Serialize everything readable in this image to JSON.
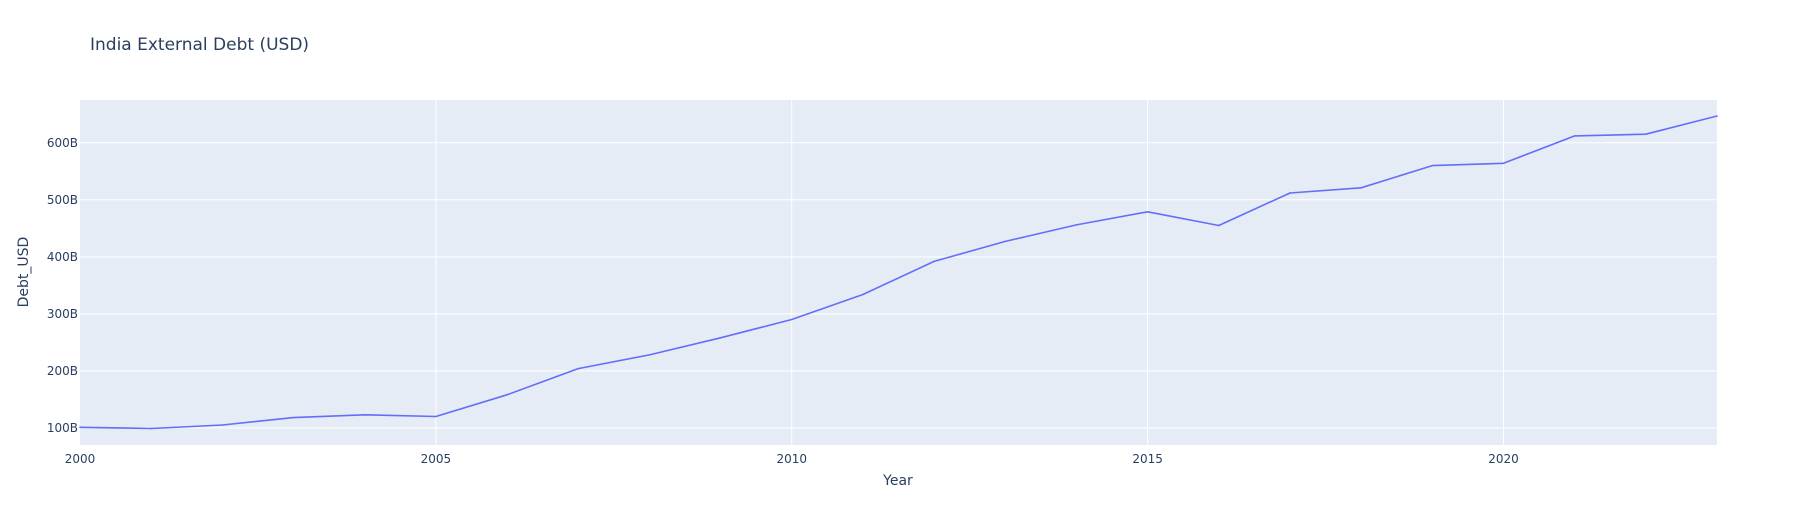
{
  "chart_data": {
    "type": "line",
    "title": "India External Debt (USD)",
    "xlabel": "Year",
    "ylabel": "Debt_USD",
    "xlim": [
      2000,
      2023
    ],
    "ylim": [
      70,
      675
    ],
    "xticks": [
      2000,
      2005,
      2010,
      2015,
      2020
    ],
    "yticks": [
      100,
      200,
      300,
      400,
      500,
      600
    ],
    "ytick_labels": [
      "100B",
      "200B",
      "300B",
      "400B",
      "500B",
      "600B"
    ],
    "grid": true,
    "series": [
      {
        "x": [
          2000,
          2001,
          2002,
          2003,
          2004,
          2005,
          2006,
          2007,
          2008,
          2009,
          2010,
          2011,
          2012,
          2013,
          2014,
          2015,
          2016,
          2017,
          2018,
          2019,
          2020,
          2021,
          2022,
          2023
        ],
        "y": [
          101,
          99,
          105,
          118,
          123,
          120,
          158,
          204,
          228,
          258,
          290,
          334,
          392,
          427,
          456,
          479,
          455,
          512,
          521,
          560,
          564,
          612,
          615,
          647
        ]
      }
    ],
    "colors": {
      "line": "#636efa",
      "plot_bg": "#e5ecf6",
      "grid": "#ffffff",
      "text": "#2a3f5f"
    }
  }
}
